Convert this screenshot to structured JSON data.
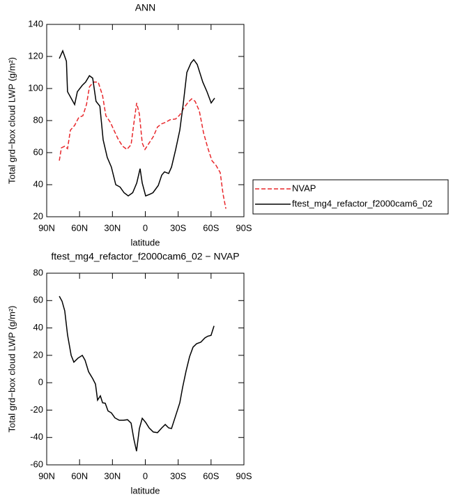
{
  "chart_data": [
    {
      "type": "line",
      "title": "ANN",
      "x_label": "latitude",
      "y_label": "Total grd−box cloud LWP (g/m²)",
      "xlim": [
        90,
        -90
      ],
      "xticks": [
        {
          "value": 90,
          "label": "90N"
        },
        {
          "value": 60,
          "label": "60N"
        },
        {
          "value": 30,
          "label": "30N"
        },
        0,
        {
          "value": -30,
          "label": "30S"
        },
        {
          "value": -60,
          "label": "60S"
        },
        {
          "value": -90,
          "label": "90S"
        }
      ],
      "ylim": [
        20,
        140
      ],
      "yticks": [
        20,
        40,
        60,
        80,
        100,
        120,
        140
      ],
      "legend": true,
      "series": [
        {
          "name": "NVAP",
          "color": "#e8262a",
          "line_style": "dashed",
          "x": [
            78.5,
            76.6,
            73.5,
            71,
            68.4,
            64.5,
            60.7,
            57,
            53.7,
            51,
            47.4,
            43,
            39,
            36,
            32,
            28.3,
            24.5,
            20.7,
            16.8,
            13,
            10.5,
            7.9,
            5.4,
            2.8,
            0.3,
            -3.5,
            -7.3,
            -11.1,
            -15,
            -18.8,
            -22.6,
            -27.7,
            -31.5,
            -35.3,
            -39.1,
            -42.3,
            -45.5,
            -49.3,
            -53.1,
            -57,
            -60.8,
            -64.6,
            -68.4,
            -71,
            -73.5
          ],
          "values": [
            55,
            63,
            64,
            62.5,
            74,
            77,
            82,
            83,
            90,
            101,
            104,
            104,
            95.5,
            83,
            79,
            73.5,
            68,
            64,
            62,
            65,
            78,
            91,
            84,
            66,
            62,
            66,
            70,
            76,
            78,
            79,
            80.5,
            81,
            83.5,
            88,
            91.5,
            93.5,
            92,
            86,
            72.5,
            63,
            55,
            52,
            47.5,
            34,
            25
          ]
        },
        {
          "name": "ftest_mg4_refactor_f2000cam6_02",
          "color": "#000000",
          "line_style": "solid",
          "x": [
            78.5,
            75.4,
            72,
            71,
            64.5,
            62,
            57.5,
            54.5,
            51,
            48,
            45,
            41.5,
            38.5,
            34.7,
            31,
            27,
            23,
            19.4,
            15.6,
            11.5,
            7.8,
            4.8,
            2.8,
            -0.3,
            -4,
            -7,
            -11.8,
            -15,
            -17.5,
            -21.3,
            -23.9,
            -27.7,
            -31.5,
            -34.7,
            -37.9,
            -41.7,
            -44.2,
            -47.4,
            -52.5,
            -56.3,
            -60.1,
            -63.3
          ],
          "values": [
            118.7,
            123.5,
            117,
            98,
            90,
            98,
            102,
            104,
            108,
            106.5,
            92,
            89,
            68,
            57,
            51,
            40,
            38.5,
            35,
            33,
            35,
            41,
            50,
            41,
            33,
            34,
            35,
            39.5,
            46,
            48,
            47,
            51,
            62,
            74,
            91,
            110,
            116,
            118,
            115,
            104,
            98,
            91,
            94
          ]
        }
      ]
    },
    {
      "type": "line",
      "title": "ftest_mg4_refactor_f2000cam6_02 − NVAP",
      "x_label": "latitude",
      "y_label": "Total grd−box cloud LWP (g/m²)",
      "xlim": [
        90,
        -90
      ],
      "xticks": [
        {
          "value": 90,
          "label": "90N"
        },
        {
          "value": 60,
          "label": "60N"
        },
        {
          "value": 30,
          "label": "30N"
        },
        0,
        {
          "value": -30,
          "label": "30S"
        },
        {
          "value": -60,
          "label": "60S"
        },
        {
          "value": -90,
          "label": "90S"
        }
      ],
      "ylim": [
        -60,
        80
      ],
      "yticks": [
        -60,
        -40,
        -20,
        0,
        20,
        40,
        60,
        80
      ],
      "legend": false,
      "series": [
        {
          "color": "#000000",
          "line_style": "solid",
          "x": [
            78.5,
            76,
            73.5,
            71,
            67.7,
            65.2,
            61.4,
            57.5,
            55,
            51.8,
            48,
            45.5,
            43.6,
            41,
            39,
            36.6,
            34,
            31,
            27.7,
            23.8,
            20,
            16.2,
            13,
            10.5,
            8,
            5.4,
            2.8,
            -0.3,
            -3.5,
            -7.3,
            -11.1,
            -15,
            -18.2,
            -21.3,
            -23.9,
            -27.7,
            -31.5,
            -34,
            -37.2,
            -40.4,
            -43.6,
            -46.8,
            -50.6,
            -54.4,
            -57,
            -60,
            -62.7
          ],
          "values": [
            63.2,
            59.6,
            52.5,
            35,
            20,
            15,
            18,
            20,
            16.5,
            8,
            3,
            -1,
            -12.7,
            -9.6,
            -14.7,
            -15,
            -20.6,
            -22,
            -25.7,
            -27.4,
            -27.4,
            -27,
            -29.5,
            -41,
            -50,
            -33.5,
            -26,
            -29,
            -33,
            -36,
            -36.5,
            -33,
            -30.5,
            -33,
            -33.5,
            -24,
            -14.7,
            -3.5,
            8.6,
            19,
            26,
            28.5,
            29.6,
            32.7,
            34,
            34.6,
            41.5
          ]
        }
      ]
    }
  ]
}
